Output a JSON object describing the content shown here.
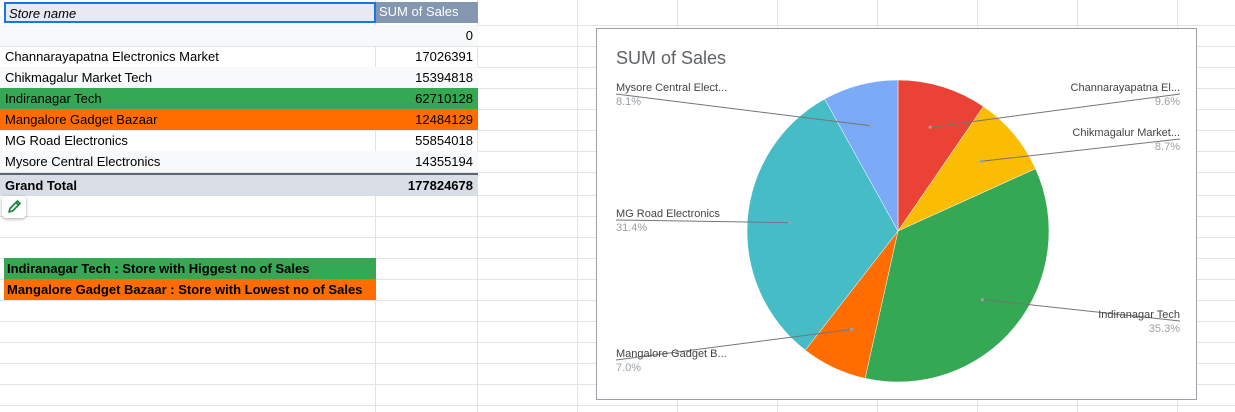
{
  "table": {
    "header": {
      "name": "Store name",
      "value": "SUM of Sales"
    },
    "blank_value": "0",
    "rows": [
      {
        "name": "Channarayapatna Electronics Market",
        "value": "17026391"
      },
      {
        "name": "Chikmagalur Market Tech",
        "value": "15394818"
      },
      {
        "name": "Indiranagar Tech",
        "value": "62710128"
      },
      {
        "name": "Mangalore Gadget Bazaar",
        "value": "12484129"
      },
      {
        "name": "MG Road Electronics",
        "value": "55854018"
      },
      {
        "name": "Mysore Central Electronics",
        "value": "14355194"
      }
    ],
    "total": {
      "name": "Grand Total",
      "value": "177824678"
    }
  },
  "notes": {
    "highest": "Indiranagar Tech : Store with Higgest no of Sales",
    "lowest": "Mangalore Gadget Bazaar : Store with Lowest no of Sales"
  },
  "colors": {
    "highlight_highest": "#34a853",
    "highlight_lowest": "#ff6d01"
  },
  "icons": {
    "edit": "pencil-icon"
  },
  "chart_data": {
    "type": "pie",
    "title": "SUM of Sales",
    "legend": "labels-outside",
    "slices": [
      {
        "name": "Channarayapatna Electronics Market",
        "label": "Channarayapatna El...",
        "value": 17026391,
        "percent_label": "9.6%",
        "color": "#ea4335"
      },
      {
        "name": "Chikmagalur Market Tech",
        "label": "Chikmagalur Market...",
        "value": 15394818,
        "percent_label": "8.7%",
        "color": "#fbbc04"
      },
      {
        "name": "Indiranagar Tech",
        "label": "Indiranagar Tech",
        "value": 62710128,
        "percent_label": "35.3%",
        "color": "#34a853"
      },
      {
        "name": "Mangalore Gadget Bazaar",
        "label": "Mangalore Gadget B...",
        "value": 12484129,
        "percent_label": "7.0%",
        "color": "#ff6d01"
      },
      {
        "name": "MG Road Electronics",
        "label": "MG Road Electronics",
        "value": 55854018,
        "percent_label": "31.4%",
        "color": "#46bdc6"
      },
      {
        "name": "Mysore Central Electronics",
        "label": "Mysore Central Elect...",
        "value": 14355194,
        "percent_label": "8.1%",
        "color": "#7baaf7"
      }
    ]
  }
}
